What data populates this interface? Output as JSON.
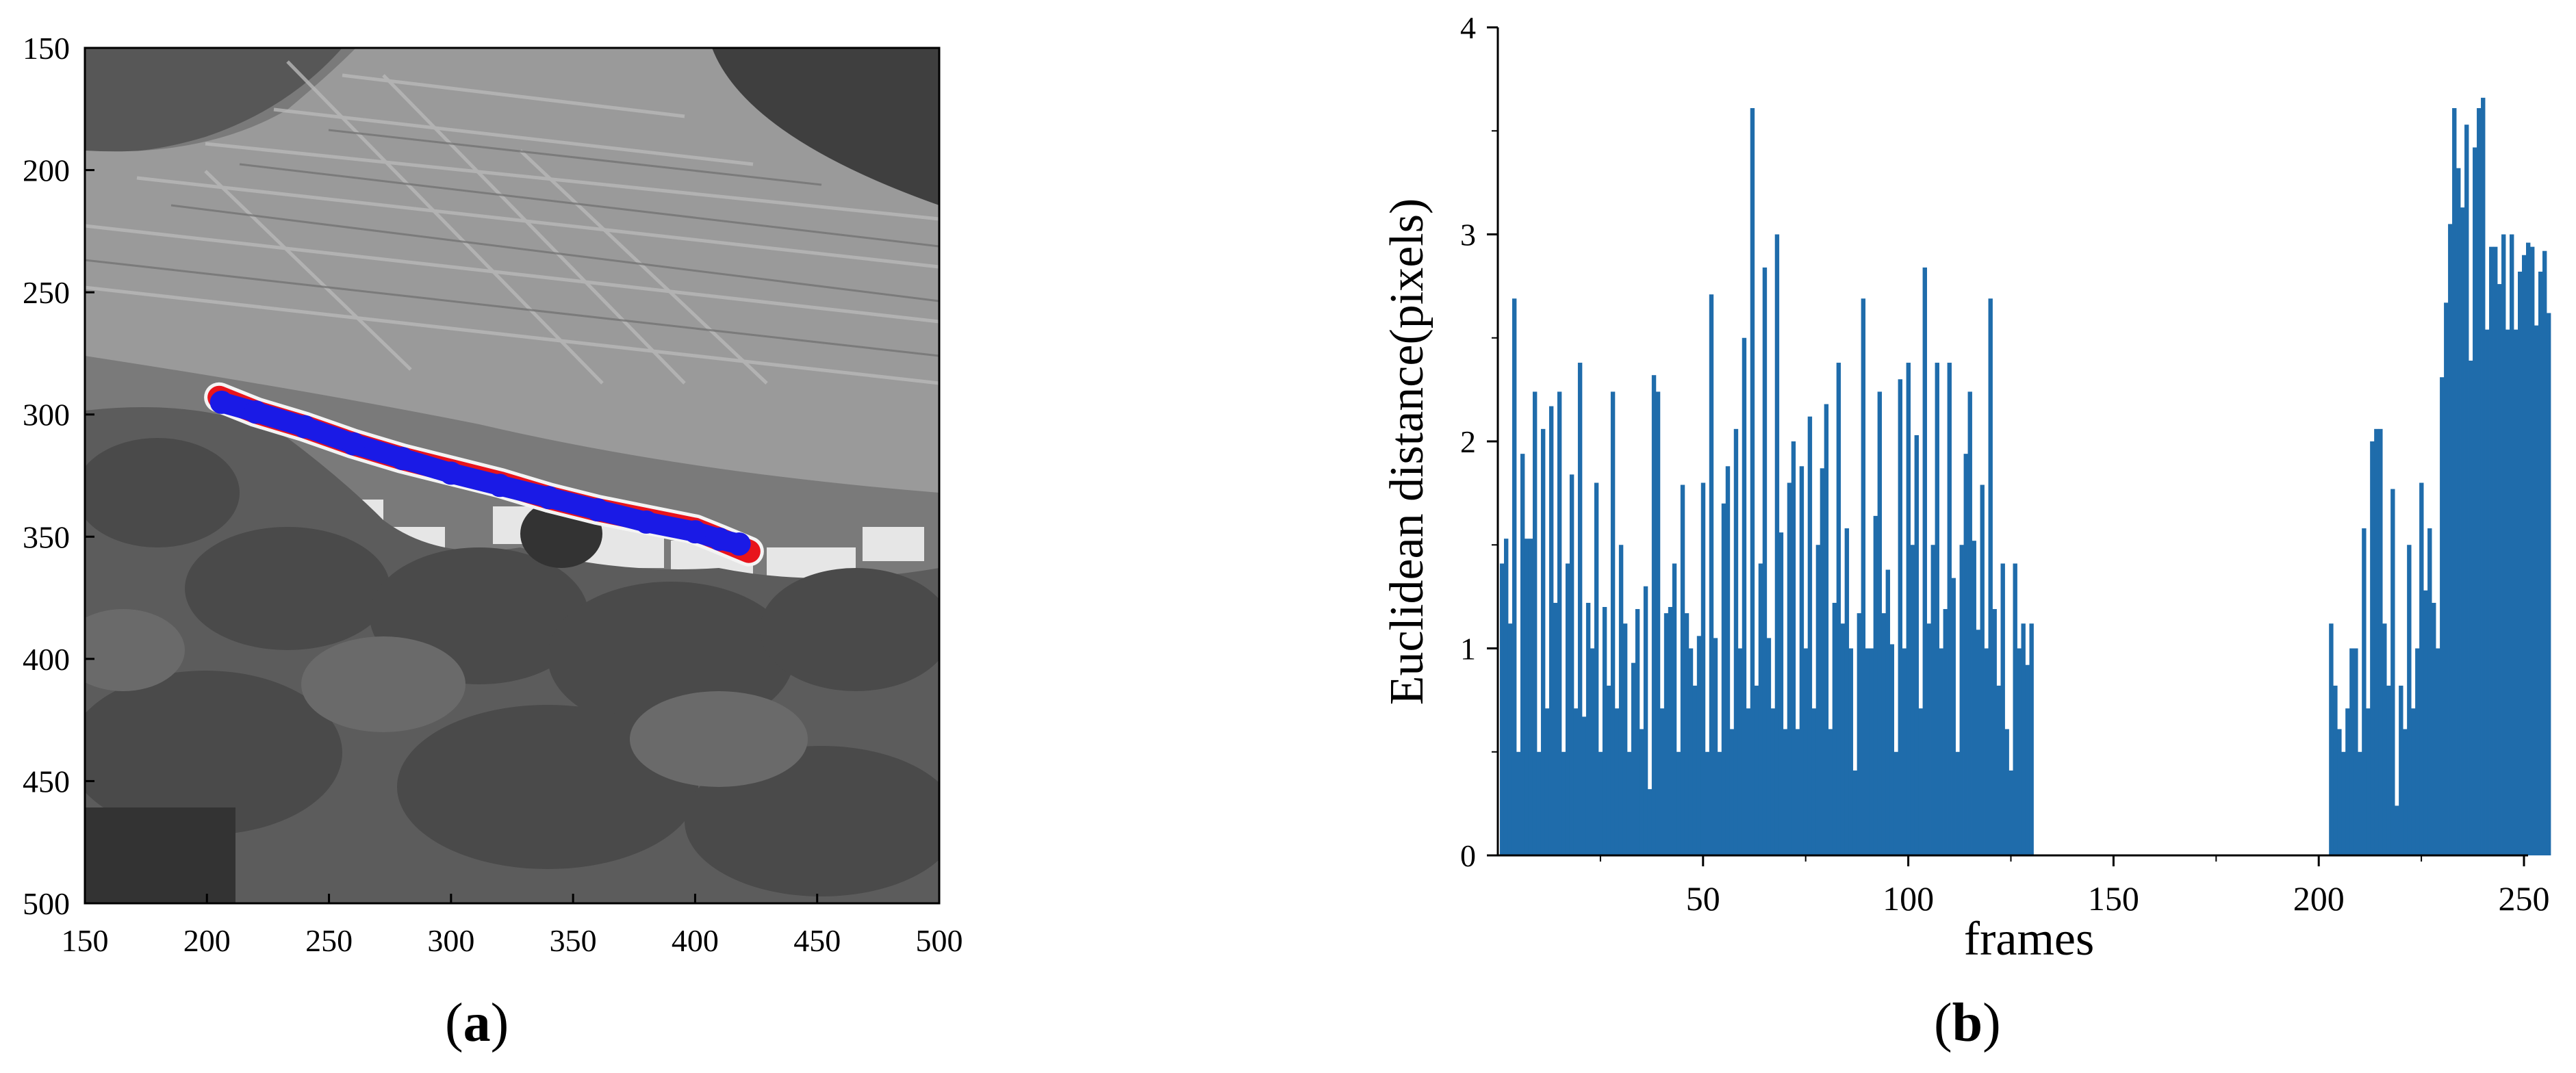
{
  "colors": {
    "bar": "#1f6cab",
    "track_gt": "#e8141c",
    "track_pred": "#1a1ae6",
    "track_halo": "#f4f4f4",
    "axis": "#000000"
  },
  "panel_a": {
    "caption_letter": "a",
    "image": "grayscale aerial photo of terraced hillside with village and trees",
    "chart_data": {
      "type": "scatter",
      "xlim": [
        150,
        500
      ],
      "ylim": [
        500,
        150
      ],
      "y_inverted": true,
      "xticks": [
        150,
        200,
        250,
        300,
        350,
        400,
        450,
        500
      ],
      "yticks": [
        150,
        200,
        250,
        300,
        350,
        400,
        450,
        500
      ],
      "series": [
        {
          "color": "#e8141c",
          "points": [
            [
              205,
              293
            ],
            [
              220,
              299
            ],
            [
              240,
              305
            ],
            [
              260,
              312
            ],
            [
              280,
              318
            ],
            [
              300,
              323
            ],
            [
              320,
              328
            ],
            [
              340,
              334
            ],
            [
              360,
              339
            ],
            [
              380,
              343
            ],
            [
              400,
              347
            ],
            [
              410,
              351
            ],
            [
              422,
              356
            ]
          ]
        },
        {
          "color": "#1a1ae6",
          "points": [
            [
              206,
              295
            ],
            [
              220,
              299
            ],
            [
              240,
              305
            ],
            [
              260,
              312
            ],
            [
              280,
              318
            ],
            [
              300,
              324
            ],
            [
              320,
              329
            ],
            [
              340,
              334
            ],
            [
              360,
              339
            ],
            [
              380,
              344
            ],
            [
              400,
              348
            ],
            [
              410,
              351
            ],
            [
              418,
              353
            ]
          ]
        }
      ]
    }
  },
  "panel_b": {
    "caption_letter": "b",
    "chart_data": {
      "type": "bar",
      "xlabel": "frames",
      "ylabel": "Euclidean distance(pixels)",
      "xlim": [
        0,
        251
      ],
      "ylim": [
        0,
        4
      ],
      "xticks": [
        50,
        100,
        150,
        200,
        250
      ],
      "yticks": [
        0,
        1,
        2,
        3,
        4
      ],
      "x_start": 1,
      "values": [
        1.41,
        1.53,
        1.12,
        2.69,
        0.5,
        1.94,
        1.53,
        1.53,
        2.24,
        0.5,
        2.06,
        0.71,
        2.17,
        1.22,
        2.24,
        0.5,
        1.41,
        1.84,
        0.71,
        2.38,
        0.67,
        1.22,
        1.0,
        1.8,
        0.5,
        1.2,
        0.82,
        2.24,
        0.71,
        1.5,
        1.12,
        0.5,
        0.93,
        1.19,
        0.61,
        1.3,
        0.32,
        2.32,
        2.24,
        0.71,
        1.17,
        1.2,
        1.41,
        0.5,
        1.79,
        1.17,
        1.0,
        0.82,
        1.06,
        1.8,
        0.5,
        2.71,
        1.05,
        0.5,
        1.7,
        1.88,
        0.61,
        2.06,
        1.0,
        2.5,
        0.71,
        3.61,
        0.82,
        1.41,
        2.84,
        1.05,
        0.71,
        3.0,
        1.56,
        0.61,
        1.8,
        2.0,
        0.61,
        1.88,
        1.0,
        2.12,
        0.71,
        1.5,
        1.87,
        2.18,
        0.61,
        1.22,
        2.38,
        1.12,
        1.58,
        1.0,
        0.41,
        1.17,
        2.69,
        1.0,
        1.0,
        1.64,
        2.24,
        1.17,
        1.38,
        1.02,
        0.5,
        2.3,
        1.0,
        2.38,
        1.5,
        2.03,
        0.71,
        2.84,
        1.12,
        1.5,
        2.38,
        1.0,
        1.19,
        2.38,
        1.34,
        0.5,
        1.5,
        1.94,
        2.24,
        1.52,
        1.09,
        1.79,
        1.0,
        2.69,
        1.19,
        0.82,
        1.41,
        0.61,
        0.41,
        1.41,
        1.0,
        1.12,
        0.92,
        1.12,
        0,
        0,
        0,
        0,
        0,
        0,
        0,
        0,
        0,
        0,
        0,
        0,
        0,
        0,
        0,
        0,
        0,
        0,
        0,
        0,
        0,
        0,
        0,
        0,
        0,
        0,
        0,
        0,
        0,
        0,
        0,
        0,
        0,
        0,
        0,
        0,
        0,
        0,
        0,
        0,
        0,
        0,
        0,
        0,
        0,
        0,
        0,
        0,
        0,
        0,
        0,
        0,
        0,
        0,
        0,
        0,
        0,
        0,
        0,
        0,
        0,
        0,
        0,
        0,
        0,
        0,
        0,
        0,
        0,
        0,
        0,
        0,
        1.12,
        0.82,
        0.61,
        0.5,
        0.71,
        1.0,
        1.0,
        0.5,
        1.58,
        0.71,
        2.0,
        2.06,
        2.06,
        1.12,
        0.82,
        1.77,
        0.24,
        0.82,
        0.61,
        1.5,
        0.71,
        1.0,
        1.8,
        1.28,
        1.58,
        1.22,
        1.0,
        2.31,
        2.67,
        3.05,
        3.61,
        3.32,
        3.13,
        3.53,
        2.39,
        3.42,
        3.61,
        3.66,
        2.54,
        2.94,
        2.94,
        2.76,
        3.0,
        2.54,
        3.0,
        2.54,
        2.82,
        2.9,
        2.96,
        2.94,
        2.56,
        2.82,
        2.92,
        2.62
      ]
    }
  }
}
